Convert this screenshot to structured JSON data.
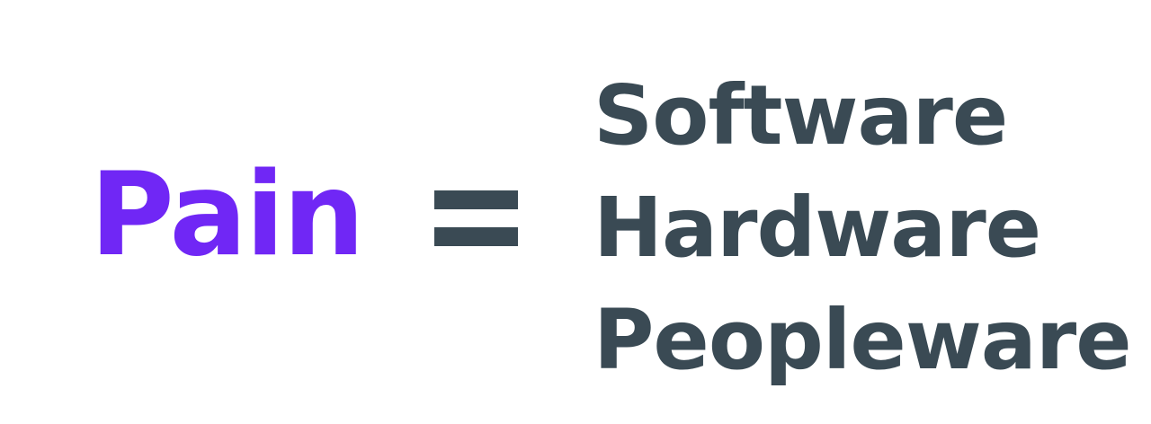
{
  "equation": {
    "lhs": "Pain",
    "operator": "=",
    "rhs": [
      "Software",
      "Hardware",
      "Peopleware"
    ]
  },
  "colors": {
    "lhs": "#7027f5",
    "rhs": "#3a4a54",
    "operator": "#3a4a54",
    "background": "#ffffff"
  }
}
